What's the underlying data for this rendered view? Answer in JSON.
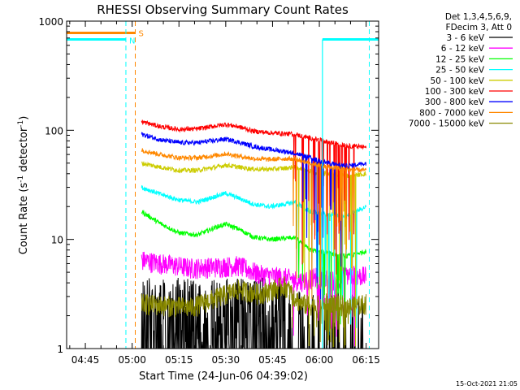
{
  "chart_data": {
    "type": "line",
    "title": "RHESSI Observing Summary Count Rates",
    "xlabel": "Start Time (24-Jun-06 04:39:02)",
    "ylabel": "Count Rate (s",
    "ylabel_sup": "-1",
    "ylabel_tail": " detector",
    "ylabel_sup2": "-1",
    "ylabel_close": ")",
    "yscale": "log",
    "ylim": [
      1,
      1000
    ],
    "xlim_minutes": [
      0,
      100
    ],
    "x_ticks": [
      {
        "minute": 6,
        "label": "04:45"
      },
      {
        "minute": 21,
        "label": "05:00"
      },
      {
        "minute": 36,
        "label": "05:15"
      },
      {
        "minute": 51,
        "label": "05:30"
      },
      {
        "minute": 66,
        "label": "05:45"
      },
      {
        "minute": 81,
        "label": "06:00"
      },
      {
        "minute": 96,
        "label": "06:15"
      }
    ],
    "y_ticks": [
      {
        "value": 1,
        "label": "1"
      },
      {
        "value": 10,
        "label": "10"
      },
      {
        "value": 100,
        "label": "100"
      },
      {
        "value": 1000,
        "label": "1000"
      }
    ],
    "legend_header": [
      "Det 1,3,4,5,6,9,",
      "FDecim 3, Att 0"
    ],
    "series": [
      {
        "name": "3 - 6 keV",
        "color": "#000000",
        "kind": "sparse",
        "level": 2.0
      },
      {
        "name": "6 - 12 keV",
        "color": "#ff00ff",
        "kind": "noisy",
        "level": 6.0,
        "x": [
          24,
          40,
          55,
          62,
          70,
          75,
          80,
          85,
          90,
          96
        ],
        "y": [
          6.5,
          5.5,
          5.8,
          4.8,
          4.5,
          4.2,
          4.5,
          4.2,
          4.8,
          4.6
        ]
      },
      {
        "name": "12 - 25 keV",
        "color": "#00ff00",
        "kind": "line",
        "x": [
          24,
          30,
          36,
          42,
          48,
          51,
          55,
          60,
          65,
          70,
          73,
          78,
          84,
          90,
          96
        ],
        "y": [
          18,
          14,
          11.5,
          11,
          13,
          13.8,
          12.5,
          10.5,
          10.0,
          10.2,
          10.5,
          8.0,
          7.5,
          7.0,
          7.8
        ]
      },
      {
        "name": "25 - 50 keV",
        "color": "#00ffff",
        "kind": "line",
        "x": [
          24,
          30,
          36,
          42,
          48,
          51,
          55,
          60,
          65,
          70,
          73,
          78,
          84,
          90,
          96
        ],
        "y": [
          30,
          26,
          23,
          22,
          25,
          26.5,
          24,
          21,
          20,
          21,
          22,
          18,
          17,
          16.5,
          20
        ]
      },
      {
        "name": "50 - 100 keV",
        "color": "#cccc00",
        "kind": "line",
        "x": [
          24,
          30,
          36,
          42,
          48,
          51,
          55,
          60,
          65,
          70,
          73,
          78,
          84,
          90,
          96
        ],
        "y": [
          50,
          46,
          43,
          43,
          46,
          48,
          46,
          44,
          44,
          45,
          46,
          42,
          40,
          38,
          40
        ]
      },
      {
        "name": "100 - 300 keV",
        "color": "#ff0000",
        "kind": "line",
        "x": [
          24,
          30,
          36,
          42,
          48,
          51,
          55,
          60,
          65,
          70,
          73,
          78,
          84,
          90,
          96
        ],
        "y": [
          120,
          108,
          102,
          103,
          110,
          113,
          108,
          98,
          95,
          93,
          92,
          85,
          78,
          72,
          70
        ]
      },
      {
        "name": "300 - 800 keV",
        "color": "#0000ff",
        "kind": "line",
        "x": [
          24,
          30,
          36,
          42,
          48,
          51,
          55,
          60,
          65,
          70,
          73,
          78,
          84,
          90,
          96
        ],
        "y": [
          92,
          82,
          77,
          77,
          81,
          83,
          78,
          71,
          67,
          64,
          62,
          56,
          50,
          47,
          50
        ]
      },
      {
        "name": "800 - 7000 keV",
        "color": "#ff8800",
        "kind": "line",
        "x": [
          24,
          30,
          36,
          42,
          48,
          51,
          55,
          60,
          65,
          70,
          73,
          78,
          84,
          90,
          96
        ],
        "y": [
          66,
          60,
          56,
          56,
          59,
          61,
          58,
          55,
          54,
          55,
          55,
          50,
          46,
          44,
          43
        ]
      },
      {
        "name": "7000 - 15000 keV",
        "color": "#888800",
        "kind": "noisy",
        "level": 2.5,
        "x": [
          24,
          40,
          55,
          62,
          70,
          75,
          80,
          85,
          90,
          96
        ],
        "y": [
          2.6,
          2.4,
          3.5,
          3.2,
          3.8,
          2.6,
          2.5,
          2.7,
          2.4,
          2.6
        ]
      }
    ],
    "annotations": [
      {
        "label": "S",
        "color": "#ff8800",
        "minute": 22
      },
      {
        "label": "N",
        "color": "#00ffff",
        "minute": 19
      }
    ],
    "bars": [
      {
        "color": "#ff8800",
        "x0": 0,
        "x1": 22,
        "value": 780
      },
      {
        "color": "#00ffff",
        "x0": 0,
        "x1": 19,
        "value": 680
      },
      {
        "color": "#00ffff",
        "x0": 82,
        "x1": 100,
        "value": 680
      }
    ],
    "vlines": [
      {
        "color": "#00ffff",
        "minute": 19
      },
      {
        "color": "#ff8800",
        "minute": 22
      },
      {
        "color": "#00ffff",
        "minute": 97
      }
    ],
    "solid_vlines": [
      {
        "color": "#00ffff",
        "minute": 82
      }
    ]
  },
  "footer_timestamp": "15-Oct-2021 21:05"
}
